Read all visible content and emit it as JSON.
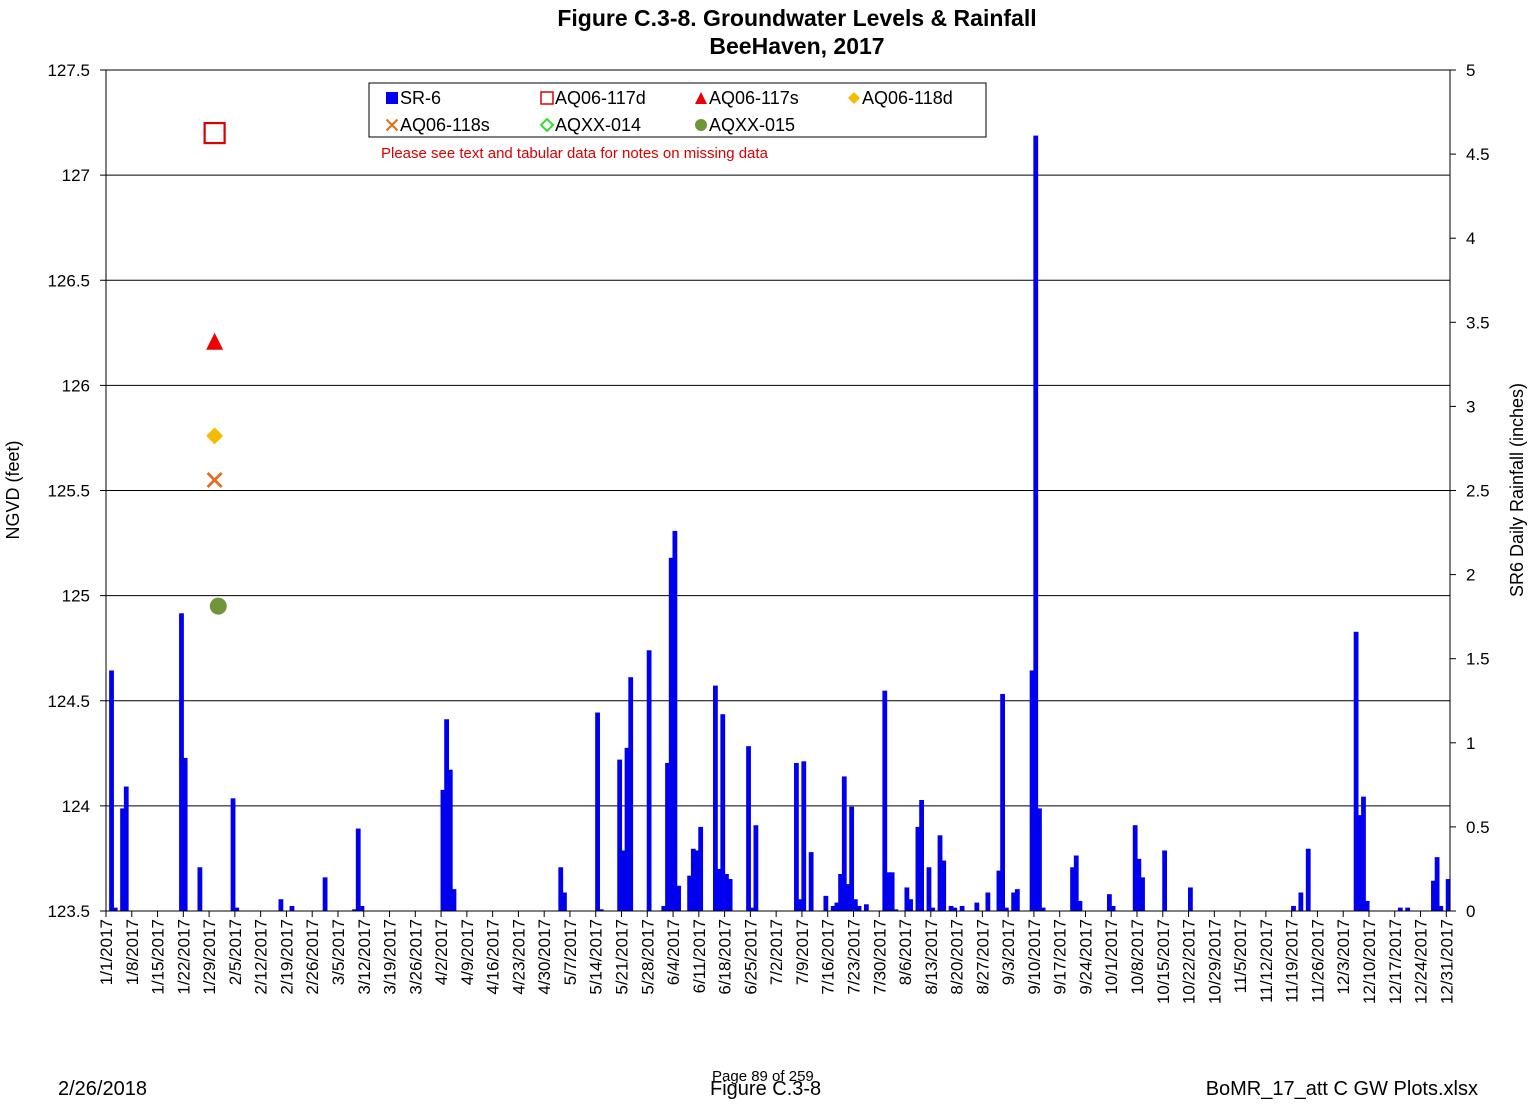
{
  "chart_data": {
    "type": "bar",
    "title": "Figure C.3-8.  Groundwater Levels & Rainfall",
    "subtitle": "BeeHaven, 2017",
    "ylabel_left": "NGVD (feet)",
    "ylabel_right": "SR6 Daily Rainfall (inches)",
    "ylim_left": [
      123.5,
      127.5
    ],
    "yticks_left": [
      "123.5",
      "124",
      "124.5",
      "125",
      "125.5",
      "126",
      "126.5",
      "127",
      "127.5"
    ],
    "ylim_right": [
      0,
      5
    ],
    "yticks_right": [
      "0",
      "0.5",
      "1",
      "1.5",
      "2",
      "2.5",
      "3",
      "3.5",
      "4",
      "4.5",
      "5"
    ],
    "grid": true,
    "xlim": [
      "2017-01-01",
      "2017-12-31"
    ],
    "xtick_labels": [
      "1/1/2017",
      "1/8/2017",
      "1/15/2017",
      "1/22/2017",
      "1/29/2017",
      "2/5/2017",
      "2/12/2017",
      "2/19/2017",
      "2/26/2017",
      "3/5/2017",
      "3/12/2017",
      "3/19/2017",
      "3/26/2017",
      "4/2/2017",
      "4/9/2017",
      "4/16/2017",
      "4/23/2017",
      "4/30/2017",
      "5/7/2017",
      "5/14/2017",
      "5/21/2017",
      "5/28/2017",
      "6/4/2017",
      "6/11/2017",
      "6/18/2017",
      "6/25/2017",
      "7/2/2017",
      "7/9/2017",
      "7/16/2017",
      "7/23/2017",
      "7/30/2017",
      "8/6/2017",
      "8/13/2017",
      "8/20/2017",
      "8/27/2017",
      "9/3/2017",
      "9/10/2017",
      "9/17/2017",
      "9/24/2017",
      "10/1/2017",
      "10/8/2017",
      "10/15/2017",
      "10/22/2017",
      "10/29/2017",
      "11/5/2017",
      "11/12/2017",
      "11/19/2017",
      "11/26/2017",
      "12/3/2017",
      "12/10/2017",
      "12/17/2017",
      "12/24/2017",
      "12/31/2017"
    ],
    "legend": [
      {
        "name": "SR-6",
        "marker": "square-filled",
        "color": "#0000ee"
      },
      {
        "name": "AQ06-117d",
        "marker": "square-open",
        "color": "#dd0000"
      },
      {
        "name": "AQ06-117s",
        "marker": "triangle",
        "color": "#ee0000"
      },
      {
        "name": "AQ06-118d",
        "marker": "diamond",
        "color": "#f5bb00"
      },
      {
        "name": "AQ06-118s",
        "marker": "x",
        "color": "#e07020"
      },
      {
        "name": "AQXX-014",
        "marker": "diamond-open",
        "color": "#33dd33"
      },
      {
        "name": "AQXX-015",
        "marker": "circle",
        "color": "#6f963b"
      }
    ],
    "legend_note": "Please see text and tabular data for notes on missing data",
    "groundwater_points": [
      {
        "series": "AQ06-117d",
        "date": "2017-01-30",
        "value": 127.2
      },
      {
        "series": "AQ06-117s",
        "date": "2017-01-30",
        "value": 126.21
      },
      {
        "series": "AQ06-118d",
        "date": "2017-01-30",
        "value": 125.76
      },
      {
        "series": "AQ06-118s",
        "date": "2017-01-30",
        "value": 125.55
      },
      {
        "series": "AQXX-015",
        "date": "2017-01-31",
        "value": 124.95
      }
    ],
    "rainfall_series": {
      "name": "SR-6",
      "color": "#0000ee",
      "unit": "inches",
      "points": [
        [
          "2017-01-02",
          1.43
        ],
        [
          "2017-01-03",
          0.02
        ],
        [
          "2017-01-05",
          0.61
        ],
        [
          "2017-01-06",
          0.74
        ],
        [
          "2017-01-21",
          1.77
        ],
        [
          "2017-01-22",
          0.91
        ],
        [
          "2017-01-26",
          0.26
        ],
        [
          "2017-02-04",
          0.67
        ],
        [
          "2017-02-05",
          0.02
        ],
        [
          "2017-02-17",
          0.07
        ],
        [
          "2017-02-20",
          0.03
        ],
        [
          "2017-03-01",
          0.2
        ],
        [
          "2017-03-09",
          0.01
        ],
        [
          "2017-03-10",
          0.49
        ],
        [
          "2017-03-11",
          0.03
        ],
        [
          "2017-04-02",
          0.72
        ],
        [
          "2017-04-03",
          1.14
        ],
        [
          "2017-04-04",
          0.84
        ],
        [
          "2017-04-05",
          0.13
        ],
        [
          "2017-05-04",
          0.26
        ],
        [
          "2017-05-05",
          0.11
        ],
        [
          "2017-05-14",
          1.18
        ],
        [
          "2017-05-15",
          0.01
        ],
        [
          "2017-05-20",
          0.9
        ],
        [
          "2017-05-21",
          0.36
        ],
        [
          "2017-05-22",
          0.97
        ],
        [
          "2017-05-23",
          1.39
        ],
        [
          "2017-05-28",
          1.55
        ],
        [
          "2017-06-01",
          0.03
        ],
        [
          "2017-06-02",
          0.88
        ],
        [
          "2017-06-03",
          2.1
        ],
        [
          "2017-06-04",
          2.26
        ],
        [
          "2017-06-05",
          0.15
        ],
        [
          "2017-06-08",
          0.21
        ],
        [
          "2017-06-09",
          0.37
        ],
        [
          "2017-06-10",
          0.36
        ],
        [
          "2017-06-11",
          0.5
        ],
        [
          "2017-06-15",
          1.34
        ],
        [
          "2017-06-16",
          0.25
        ],
        [
          "2017-06-17",
          1.17
        ],
        [
          "2017-06-18",
          0.22
        ],
        [
          "2017-06-19",
          0.19
        ],
        [
          "2017-06-24",
          0.98
        ],
        [
          "2017-06-25",
          0.02
        ],
        [
          "2017-06-26",
          0.51
        ],
        [
          "2017-07-07",
          0.88
        ],
        [
          "2017-07-08",
          0.07
        ],
        [
          "2017-07-09",
          0.89
        ],
        [
          "2017-07-11",
          0.35
        ],
        [
          "2017-07-15",
          0.09
        ],
        [
          "2017-07-17",
          0.03
        ],
        [
          "2017-07-18",
          0.05
        ],
        [
          "2017-07-19",
          0.22
        ],
        [
          "2017-07-20",
          0.8
        ],
        [
          "2017-07-21",
          0.16
        ],
        [
          "2017-07-22",
          0.62
        ],
        [
          "2017-07-23",
          0.07
        ],
        [
          "2017-07-24",
          0.03
        ],
        [
          "2017-07-26",
          0.04
        ],
        [
          "2017-07-31",
          1.31
        ],
        [
          "2017-08-01",
          0.23
        ],
        [
          "2017-08-02",
          0.23
        ],
        [
          "2017-08-03",
          0.01
        ],
        [
          "2017-08-06",
          0.14
        ],
        [
          "2017-08-07",
          0.07
        ],
        [
          "2017-08-09",
          0.5
        ],
        [
          "2017-08-10",
          0.66
        ],
        [
          "2017-08-12",
          0.26
        ],
        [
          "2017-08-13",
          0.02
        ],
        [
          "2017-08-15",
          0.45
        ],
        [
          "2017-08-16",
          0.3
        ],
        [
          "2017-08-18",
          0.03
        ],
        [
          "2017-08-19",
          0.02
        ],
        [
          "2017-08-21",
          0.03
        ],
        [
          "2017-08-25",
          0.05
        ],
        [
          "2017-08-28",
          0.11
        ],
        [
          "2017-08-31",
          0.24
        ],
        [
          "2017-09-01",
          1.29
        ],
        [
          "2017-09-02",
          0.02
        ],
        [
          "2017-09-04",
          0.11
        ],
        [
          "2017-09-05",
          0.13
        ],
        [
          "2017-09-09",
          1.43
        ],
        [
          "2017-09-10",
          4.61
        ],
        [
          "2017-09-11",
          0.61
        ],
        [
          "2017-09-12",
          0.02
        ],
        [
          "2017-09-20",
          0.26
        ],
        [
          "2017-09-21",
          0.33
        ],
        [
          "2017-09-22",
          0.06
        ],
        [
          "2017-09-30",
          0.1
        ],
        [
          "2017-10-01",
          0.03
        ],
        [
          "2017-10-07",
          0.51
        ],
        [
          "2017-10-08",
          0.31
        ],
        [
          "2017-10-09",
          0.2
        ],
        [
          "2017-10-15",
          0.36
        ],
        [
          "2017-10-22",
          0.14
        ],
        [
          "2017-11-19",
          0.03
        ],
        [
          "2017-11-21",
          0.11
        ],
        [
          "2017-11-23",
          0.37
        ],
        [
          "2017-12-06",
          1.66
        ],
        [
          "2017-12-07",
          0.57
        ],
        [
          "2017-12-08",
          0.68
        ],
        [
          "2017-12-09",
          0.06
        ],
        [
          "2017-12-18",
          0.02
        ],
        [
          "2017-12-20",
          0.02
        ],
        [
          "2017-12-27",
          0.18
        ],
        [
          "2017-12-28",
          0.32
        ],
        [
          "2017-12-29",
          0.03
        ],
        [
          "2017-12-31",
          0.19
        ]
      ]
    }
  },
  "footer": {
    "date": "2/26/2018",
    "page": "Page 89 of 259",
    "figure": "Figure C.3-8",
    "file": "BoMR_17_att C GW Plots.xlsx"
  }
}
